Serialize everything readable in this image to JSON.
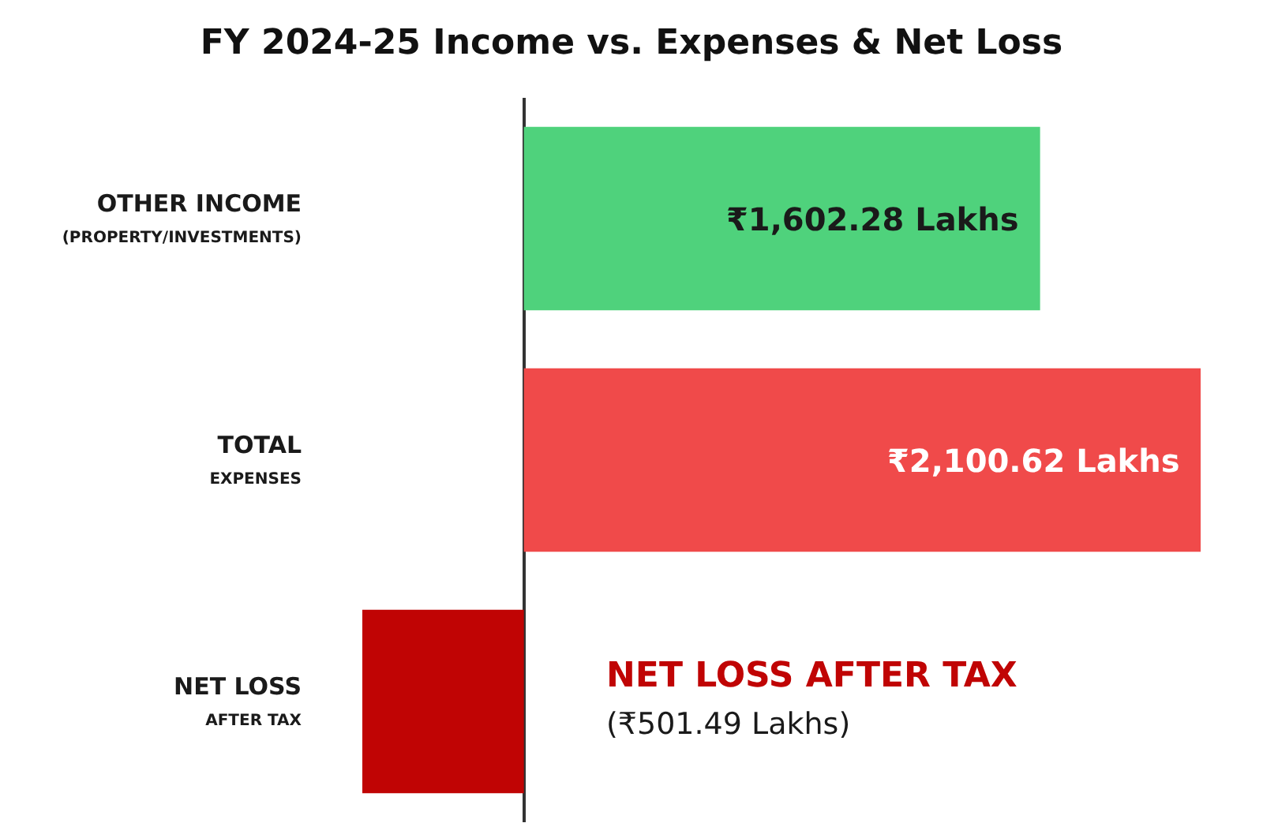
{
  "chart_data": {
    "type": "bar",
    "title": "FY 2024-25 Income vs. Expenses & Net Loss",
    "orientation": "horizontal",
    "categories": [
      "OTHER INCOME\n(PROPERTY/INVESTMENTS)",
      "TOTAL\nEXPENSES",
      "NET LOSS\nAFTER TAX"
    ],
    "values": [
      1602.28,
      2100.62,
      -501.49
    ],
    "colors": [
      "#4fd27c",
      "#f04a4a",
      "#c00404"
    ],
    "value_labels": [
      "₹1,602.28 Lakhs",
      "₹2,100.62 Lakhs",
      "(₹501.49 Lakhs)"
    ],
    "annotations": [
      "NET LOSS AFTER TAX"
    ],
    "tick_labels": "y",
    "grid": false,
    "legend": false
  }
}
